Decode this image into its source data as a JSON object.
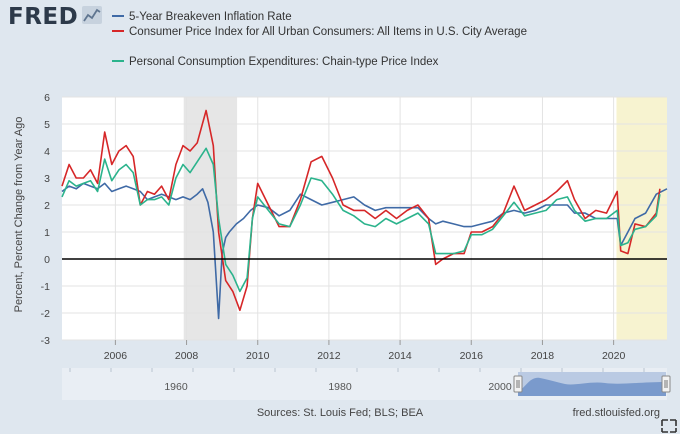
{
  "brand": {
    "logo_text": "FRED"
  },
  "chart_data": {
    "type": "line",
    "title": "",
    "xlabel": "",
    "ylabel": "Percent, Percent Change from Year Ago",
    "xlim": [
      2004.5,
      2021.5
    ],
    "ylim": [
      -3,
      6
    ],
    "y_ticks": [
      -3,
      -2,
      -1,
      0,
      1,
      2,
      3,
      4,
      5,
      6
    ],
    "x_ticks": [
      2006,
      2008,
      2010,
      2012,
      2014,
      2016,
      2018,
      2020
    ],
    "grid": true,
    "legend_position": "top-left",
    "recessions": [
      [
        2007.92,
        2009.42
      ],
      [
        2020.08,
        2021.5
      ]
    ],
    "series": [
      {
        "name": "5-Year Breakeven Inflation Rate",
        "color": "#3f6aa6",
        "x": [
          2004.5,
          2004.7,
          2004.9,
          2005.1,
          2005.3,
          2005.5,
          2005.7,
          2005.9,
          2006.1,
          2006.3,
          2006.5,
          2006.7,
          2006.9,
          2007.1,
          2007.3,
          2007.5,
          2007.7,
          2007.9,
          2008.1,
          2008.3,
          2008.45,
          2008.6,
          2008.75,
          2008.9,
          2009.0,
          2009.1,
          2009.2,
          2009.4,
          2009.6,
          2009.8,
          2010.0,
          2010.3,
          2010.6,
          2010.9,
          2011.2,
          2011.5,
          2011.8,
          2012.1,
          2012.4,
          2012.7,
          2013.0,
          2013.3,
          2013.6,
          2013.9,
          2014.2,
          2014.5,
          2014.8,
          2015.0,
          2015.2,
          2015.5,
          2015.8,
          2016.0,
          2016.3,
          2016.6,
          2016.9,
          2017.2,
          2017.5,
          2017.8,
          2018.1,
          2018.4,
          2018.7,
          2018.9,
          2019.2,
          2019.5,
          2019.8,
          2020.1,
          2020.2,
          2020.4,
          2020.6,
          2020.9,
          2021.2,
          2021.5
        ],
        "values": [
          2.5,
          2.7,
          2.6,
          2.8,
          2.7,
          2.6,
          2.8,
          2.5,
          2.6,
          2.7,
          2.6,
          2.5,
          2.2,
          2.3,
          2.4,
          2.3,
          2.2,
          2.3,
          2.2,
          2.4,
          2.6,
          2.1,
          1.0,
          -2.2,
          0.2,
          0.8,
          1.0,
          1.3,
          1.5,
          1.8,
          2.0,
          1.9,
          1.6,
          1.8,
          2.4,
          2.2,
          2.0,
          2.1,
          2.2,
          2.3,
          2.0,
          1.8,
          1.9,
          1.9,
          1.9,
          1.9,
          1.5,
          1.3,
          1.4,
          1.3,
          1.2,
          1.2,
          1.3,
          1.4,
          1.7,
          1.8,
          1.7,
          1.8,
          2.0,
          2.0,
          2.0,
          1.7,
          1.7,
          1.5,
          1.5,
          1.5,
          0.5,
          1.0,
          1.5,
          1.7,
          2.4,
          2.6
        ]
      },
      {
        "name": "Consumer Price Index for All Urban Consumers: All Items in U.S. City Average",
        "color": "#d62728",
        "x": [
          2004.5,
          2004.7,
          2004.9,
          2005.1,
          2005.3,
          2005.5,
          2005.7,
          2005.9,
          2006.1,
          2006.3,
          2006.5,
          2006.7,
          2006.9,
          2007.1,
          2007.3,
          2007.5,
          2007.7,
          2007.9,
          2008.1,
          2008.3,
          2008.55,
          2008.75,
          2008.9,
          2009.1,
          2009.3,
          2009.5,
          2009.7,
          2009.85,
          2010.0,
          2010.3,
          2010.6,
          2010.9,
          2011.2,
          2011.5,
          2011.8,
          2012.1,
          2012.4,
          2012.7,
          2013.0,
          2013.3,
          2013.6,
          2013.9,
          2014.2,
          2014.5,
          2014.8,
          2015.0,
          2015.2,
          2015.5,
          2015.8,
          2016.0,
          2016.3,
          2016.6,
          2016.9,
          2017.2,
          2017.5,
          2017.8,
          2018.1,
          2018.4,
          2018.7,
          2018.9,
          2019.2,
          2019.5,
          2019.8,
          2020.1,
          2020.2,
          2020.4,
          2020.6,
          2020.9,
          2021.2,
          2021.3
        ],
        "values": [
          2.7,
          3.5,
          3.0,
          3.0,
          3.3,
          2.8,
          4.7,
          3.5,
          4.0,
          4.2,
          3.8,
          2.0,
          2.5,
          2.4,
          2.7,
          2.2,
          3.5,
          4.2,
          4.0,
          4.3,
          5.5,
          4.2,
          1.0,
          -0.8,
          -1.2,
          -1.9,
          -1.0,
          1.5,
          2.8,
          2.0,
          1.2,
          1.2,
          2.2,
          3.6,
          3.8,
          3.0,
          2.0,
          1.8,
          1.8,
          1.5,
          1.8,
          1.5,
          1.8,
          2.0,
          1.5,
          -0.2,
          0.0,
          0.2,
          0.2,
          1.0,
          1.0,
          1.2,
          1.7,
          2.7,
          1.8,
          2.0,
          2.2,
          2.5,
          2.9,
          2.2,
          1.5,
          1.8,
          1.7,
          2.5,
          0.3,
          0.2,
          1.3,
          1.2,
          1.7,
          2.6
        ]
      },
      {
        "name": "Personal Consumption Expenditures: Chain-type Price Index",
        "color": "#2bb38c",
        "x": [
          2004.5,
          2004.7,
          2004.9,
          2005.1,
          2005.3,
          2005.5,
          2005.7,
          2005.9,
          2006.1,
          2006.3,
          2006.5,
          2006.7,
          2006.9,
          2007.1,
          2007.3,
          2007.5,
          2007.7,
          2007.9,
          2008.1,
          2008.3,
          2008.55,
          2008.75,
          2008.9,
          2009.1,
          2009.3,
          2009.5,
          2009.7,
          2009.85,
          2010.0,
          2010.3,
          2010.6,
          2010.9,
          2011.2,
          2011.5,
          2011.8,
          2012.1,
          2012.4,
          2012.7,
          2013.0,
          2013.3,
          2013.6,
          2013.9,
          2014.2,
          2014.5,
          2014.8,
          2015.0,
          2015.2,
          2015.5,
          2015.8,
          2016.0,
          2016.3,
          2016.6,
          2016.9,
          2017.2,
          2017.5,
          2017.8,
          2018.1,
          2018.4,
          2018.7,
          2018.9,
          2019.2,
          2019.5,
          2019.8,
          2020.1,
          2020.2,
          2020.4,
          2020.6,
          2020.9,
          2021.2,
          2021.3
        ],
        "values": [
          2.3,
          2.9,
          2.7,
          2.8,
          2.9,
          2.5,
          3.7,
          2.9,
          3.3,
          3.5,
          3.2,
          2.0,
          2.2,
          2.2,
          2.3,
          2.0,
          3.0,
          3.5,
          3.2,
          3.6,
          4.1,
          3.5,
          1.5,
          -0.2,
          -0.6,
          -1.2,
          -0.7,
          1.5,
          2.3,
          1.8,
          1.3,
          1.2,
          2.0,
          3.0,
          2.9,
          2.4,
          1.8,
          1.6,
          1.3,
          1.2,
          1.5,
          1.3,
          1.5,
          1.7,
          1.3,
          0.2,
          0.2,
          0.2,
          0.3,
          0.9,
          0.9,
          1.1,
          1.6,
          2.1,
          1.6,
          1.7,
          1.8,
          2.2,
          2.3,
          1.8,
          1.4,
          1.5,
          1.5,
          1.8,
          0.5,
          0.6,
          1.1,
          1.2,
          1.6,
          2.4
        ]
      }
    ]
  },
  "navigator": {
    "tick_labels": [
      "1960",
      "1980",
      "2000"
    ]
  },
  "footer": {
    "sources": "Sources: St. Louis Fed; BLS; BEA",
    "site": "fred.stlouisfed.org"
  },
  "colors": {
    "background": "#dfe7ef",
    "plot_background": "#ffffff",
    "recession_shade": "#e6e6e6",
    "covid_shade": "#f7f3d0",
    "navigator_fill": "#7a9ccf"
  },
  "icons": [
    "fred-logo-chart-icon",
    "fullscreen-expand-icon"
  ]
}
